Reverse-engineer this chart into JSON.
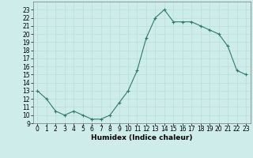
{
  "x": [
    0,
    1,
    2,
    3,
    4,
    5,
    6,
    7,
    8,
    9,
    10,
    11,
    12,
    13,
    14,
    15,
    16,
    17,
    18,
    19,
    20,
    21,
    22,
    23
  ],
  "y": [
    13,
    12,
    10.5,
    10,
    10.5,
    10,
    9.5,
    9.5,
    10,
    11.5,
    13,
    15.5,
    19.5,
    22,
    23,
    21.5,
    21.5,
    21.5,
    21,
    20.5,
    20,
    18.5,
    15.5,
    15
  ],
  "xlabel": "Humidex (Indice chaleur)",
  "xlim": [
    -0.5,
    23.5
  ],
  "ylim": [
    9,
    24
  ],
  "yticks": [
    9,
    10,
    11,
    12,
    13,
    14,
    15,
    16,
    17,
    18,
    19,
    20,
    21,
    22,
    23
  ],
  "xticks": [
    0,
    1,
    2,
    3,
    4,
    5,
    6,
    7,
    8,
    9,
    10,
    11,
    12,
    13,
    14,
    15,
    16,
    17,
    18,
    19,
    20,
    21,
    22,
    23
  ],
  "line_color": "#2d7a6e",
  "bg_color": "#ceecea",
  "grid_color": "#b8deda",
  "label_fontsize": 6.5,
  "tick_fontsize": 5.5
}
